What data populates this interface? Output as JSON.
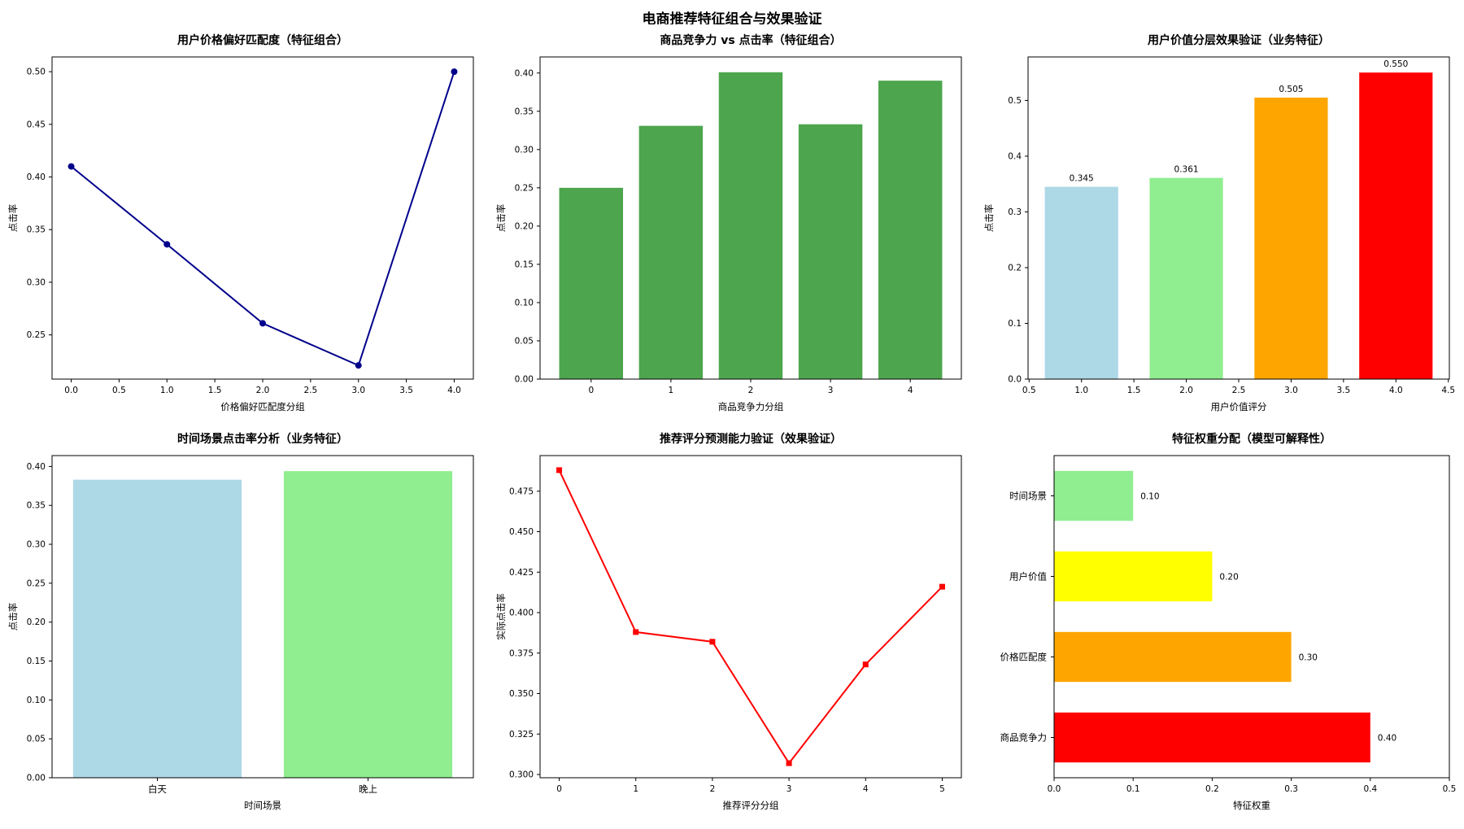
{
  "figure": {
    "title": "电商推荐特征组合与效果验证"
  },
  "chart_data": [
    {
      "id": "chart-price-preference",
      "type": "line",
      "title": "用户价格偏好匹配度（特征组合）",
      "xlabel": "价格偏好匹配度分组",
      "ylabel": "点击率",
      "line_color": "#00008b",
      "marker": "circle",
      "x": [
        0,
        1,
        2,
        3,
        4
      ],
      "y": [
        0.41,
        0.336,
        0.261,
        0.221,
        0.5
      ],
      "xlim": [
        -0.2,
        4.2
      ],
      "ylim": [
        0.208,
        0.514
      ],
      "xticks": [
        "0.0",
        "0.5",
        "1.0",
        "1.5",
        "2.0",
        "2.5",
        "3.0",
        "3.5",
        "4.0"
      ],
      "yticks": [
        "0.25",
        "0.30",
        "0.35",
        "0.40",
        "0.45",
        "0.50"
      ],
      "legend_position": "none",
      "grid": false
    },
    {
      "id": "chart-competitiveness",
      "type": "bar",
      "title": "商品竞争力 vs 点击率（特征组合）",
      "xlabel": "商品竞争力分组",
      "ylabel": "点击率",
      "bar_colors": [
        "#4da64d",
        "#4da64d",
        "#4da64d",
        "#4da64d",
        "#4da64d"
      ],
      "x": [
        0,
        1,
        2,
        3,
        4
      ],
      "y": [
        0.25,
        0.331,
        0.401,
        0.333,
        0.39
      ],
      "bar_width": 0.8,
      "xlim": [
        -0.64,
        4.64
      ],
      "ylim": [
        0,
        0.421
      ],
      "xticks": [
        "0",
        "1",
        "2",
        "3",
        "4"
      ],
      "yticks": [
        "0.00",
        "0.05",
        "0.10",
        "0.15",
        "0.20",
        "0.25",
        "0.30",
        "0.35",
        "0.40"
      ],
      "legend_position": "none",
      "grid": false
    },
    {
      "id": "chart-user-value",
      "type": "bar",
      "title": "用户价值分层效果验证（业务特征）",
      "xlabel": "用户价值评分",
      "ylabel": "点击率",
      "bar_colors": [
        "#add8e6",
        "#90ee90",
        "#ffa500",
        "#ff0000"
      ],
      "x": [
        1,
        2,
        3,
        4
      ],
      "y": [
        0.345,
        0.361,
        0.505,
        0.55
      ],
      "value_labels": [
        "0.345",
        "0.361",
        "0.505",
        "0.550"
      ],
      "bar_width": 0.7,
      "xlim": [
        0.49,
        4.51
      ],
      "ylim": [
        0,
        0.578
      ],
      "xticks": [
        "0.5",
        "1.0",
        "1.5",
        "2.0",
        "2.5",
        "3.0",
        "3.5",
        "4.0",
        "4.5"
      ],
      "yticks": [
        "0.0",
        "0.1",
        "0.2",
        "0.3",
        "0.4",
        "0.5"
      ],
      "legend_position": "none",
      "grid": false
    },
    {
      "id": "chart-time-scene",
      "type": "bar",
      "title": "时间场景点击率分析（业务特征）",
      "xlabel": "时间场景",
      "ylabel": "点击率",
      "categories": [
        "白天",
        "晚上"
      ],
      "y": [
        0.383,
        0.394
      ],
      "bar_colors": [
        "#add8e6",
        "#90ee90"
      ],
      "bar_width": 0.8,
      "ylim": [
        0,
        0.414
      ],
      "yticks": [
        "0.00",
        "0.05",
        "0.10",
        "0.15",
        "0.20",
        "0.25",
        "0.30",
        "0.35",
        "0.40"
      ],
      "legend_position": "none",
      "grid": false
    },
    {
      "id": "chart-rating-prediction",
      "type": "line",
      "title": "推荐评分预测能力验证（效果验证）",
      "xlabel": "推荐评分分组",
      "ylabel": "实际点击率",
      "line_color": "#ff0000",
      "marker": "square",
      "x": [
        0,
        1,
        2,
        3,
        4,
        5
      ],
      "y": [
        0.488,
        0.388,
        0.382,
        0.307,
        0.368,
        0.416
      ],
      "xlim": [
        -0.25,
        5.25
      ],
      "ylim": [
        0.298,
        0.497
      ],
      "xticks": [
        "0",
        "1",
        "2",
        "3",
        "4",
        "5"
      ],
      "yticks": [
        "0.300",
        "0.325",
        "0.350",
        "0.375",
        "0.400",
        "0.425",
        "0.450",
        "0.475"
      ],
      "legend_position": "none",
      "grid": false
    },
    {
      "id": "chart-feature-weights",
      "type": "barh",
      "title": "特征权重分配（模型可解释性）",
      "xlabel": "特征权重",
      "ylabel": "",
      "categories": [
        "时间场景",
        "用户价值",
        "价格匹配度",
        "商品竞争力"
      ],
      "values": [
        0.1,
        0.2,
        0.3,
        0.4
      ],
      "value_labels": [
        "0.10",
        "0.20",
        "0.30",
        "0.40"
      ],
      "bar_colors": [
        "#90ee90",
        "#ffff00",
        "#ffa500",
        "#ff0000"
      ],
      "bar_height": 0.62,
      "xlim": [
        0,
        0.5
      ],
      "xticks": [
        "0.0",
        "0.1",
        "0.2",
        "0.3",
        "0.4",
        "0.5"
      ],
      "legend_position": "none",
      "grid": false,
      "ml": 96
    }
  ]
}
